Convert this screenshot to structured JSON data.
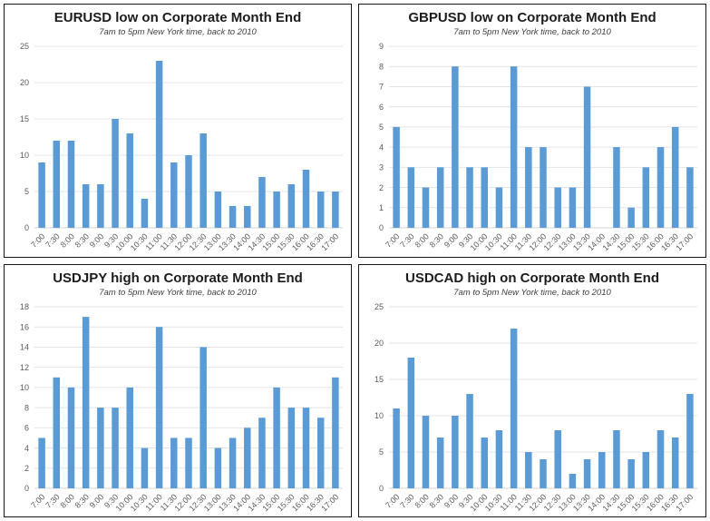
{
  "style": {
    "bar_color": "#5B9BD5",
    "grid_color": "#e4e4e4",
    "baseline_color": "#d6d6d6",
    "axis_text_color": "#595959",
    "panel_border_color": "#161616"
  },
  "chart_data": [
    {
      "type": "bar",
      "title": "EURUSD low on Corporate Month End",
      "subtitle": "7am to 5pm New York time, back to 2010",
      "categories": [
        "7:00",
        "7:30",
        "8:00",
        "8:30",
        "9:00",
        "9:30",
        "10:00",
        "10:30",
        "11:00",
        "11:30",
        "12:00",
        "12:30",
        "13:00",
        "13:30",
        "14:00",
        "14:30",
        "15:00",
        "15:30",
        "16:00",
        "16:30",
        "17:00"
      ],
      "values": [
        9,
        12,
        12,
        6,
        6,
        15,
        13,
        4,
        23,
        9,
        10,
        13,
        5,
        3,
        3,
        7,
        5,
        6,
        8,
        5,
        5
      ],
      "xlabel": "",
      "ylabel": "",
      "ylim": [
        0,
        25
      ],
      "ytick_step": 5,
      "grid": true,
      "legend": "none"
    },
    {
      "type": "bar",
      "title": "GBPUSD low on Corporate Month End",
      "subtitle": "7am to 5pm New York time, back to 2010",
      "categories": [
        "7:00",
        "7:30",
        "8:00",
        "8:30",
        "9:00",
        "9:30",
        "10:00",
        "10:30",
        "11:00",
        "11:30",
        "12:00",
        "12:30",
        "13:00",
        "13:30",
        "14:00",
        "14:30",
        "15:00",
        "15:30",
        "16:00",
        "16:30",
        "17:00"
      ],
      "values": [
        5,
        3,
        2,
        3,
        8,
        3,
        3,
        2,
        8,
        4,
        4,
        2,
        2,
        7,
        0,
        4,
        1,
        3,
        4,
        5,
        3
      ],
      "xlabel": "",
      "ylabel": "",
      "ylim": [
        0,
        9
      ],
      "ytick_step": 1,
      "grid": true,
      "legend": "none"
    },
    {
      "type": "bar",
      "title": "USDJPY high on Corporate Month End",
      "subtitle": "7am to 5pm New York time, back to 2010",
      "categories": [
        "7:00",
        "7:30",
        "8:00",
        "8:30",
        "9:00",
        "9:30",
        "10:00",
        "10:30",
        "11:00",
        "11:30",
        "12:00",
        "12:30",
        "13:00",
        "13:30",
        "14:00",
        "14:30",
        "15:00",
        "15:30",
        "16:00",
        "16:30",
        "17:00"
      ],
      "values": [
        5,
        11,
        10,
        17,
        8,
        8,
        10,
        4,
        16,
        5,
        5,
        14,
        4,
        5,
        6,
        7,
        10,
        8,
        8,
        7,
        11
      ],
      "xlabel": "",
      "ylabel": "",
      "ylim": [
        0,
        18
      ],
      "ytick_step": 2,
      "grid": true,
      "legend": "none"
    },
    {
      "type": "bar",
      "title": "USDCAD high on Corporate Month End",
      "subtitle": "7am to 5pm New York time, back to 2010",
      "categories": [
        "7:00",
        "7:30",
        "8:00",
        "8:30",
        "9:00",
        "9:30",
        "10:00",
        "10:30",
        "11:00",
        "11:30",
        "12:00",
        "12:30",
        "13:00",
        "13:30",
        "14:00",
        "14:30",
        "15:00",
        "15:30",
        "16:00",
        "16:30",
        "17:00"
      ],
      "values": [
        11,
        18,
        10,
        7,
        10,
        13,
        7,
        8,
        22,
        5,
        4,
        8,
        2,
        4,
        5,
        8,
        4,
        5,
        8,
        7,
        13
      ],
      "xlabel": "",
      "ylabel": "",
      "ylim": [
        0,
        25
      ],
      "ytick_step": 5,
      "grid": true,
      "legend": "none"
    }
  ]
}
